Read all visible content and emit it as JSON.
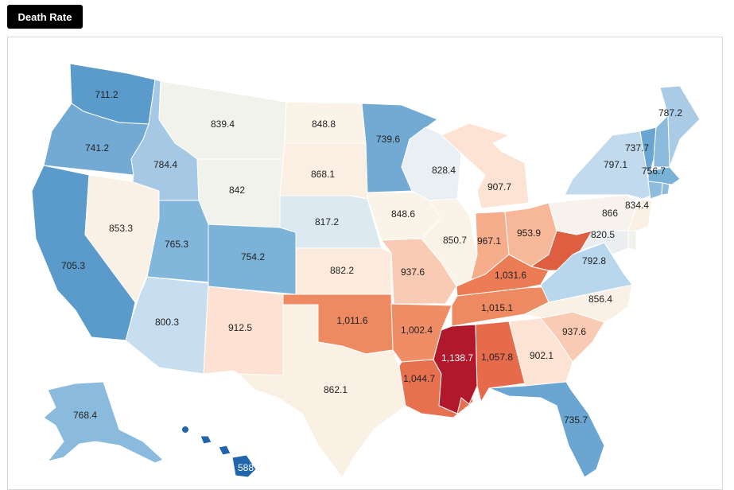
{
  "header": {
    "metric_button_label": "Death Rate"
  },
  "states": {
    "WA": {
      "label": "711.2",
      "color": "#5a9bcb"
    },
    "OR": {
      "label": "741.2",
      "color": "#72aad4"
    },
    "CA": {
      "label": "705.3",
      "color": "#5a9bcb"
    },
    "ID": {
      "label": "784.4",
      "color": "#a5c9e4"
    },
    "NV": {
      "label": "853.3",
      "color": "#f9f1e6"
    },
    "MT": {
      "label": "839.4",
      "color": "#f2f2ec"
    },
    "WY": {
      "label": "842",
      "color": "#f2f2ec"
    },
    "UT": {
      "label": "765.3",
      "color": "#82b6da"
    },
    "AZ": {
      "label": "800.3",
      "color": "#c6def0"
    },
    "CO": {
      "label": "754.2",
      "color": "#7bb2d8"
    },
    "NM": {
      "label": "912.5",
      "color": "#fde1d2"
    },
    "ND": {
      "label": "848.8",
      "color": "#faf3e8"
    },
    "SD": {
      "label": "868.1",
      "color": "#fbeee2"
    },
    "NE": {
      "label": "817.2",
      "color": "#dde9f0"
    },
    "KS": {
      "label": "882.2",
      "color": "#fcebdc"
    },
    "OK": {
      "label": "1,011.6",
      "color": "#ee8a62"
    },
    "TX": {
      "label": "862.1",
      "color": "#faf0e4"
    },
    "MN": {
      "label": "739.6",
      "color": "#72aad4"
    },
    "IA": {
      "label": "848.6",
      "color": "#faf3e8"
    },
    "MO": {
      "label": "937.6",
      "color": "#f9cbb4"
    },
    "AR": {
      "label": "1,002.4",
      "color": "#ef8e66"
    },
    "LA": {
      "label": "1,044.7",
      "color": "#e7704f"
    },
    "WI": {
      "label": "828.4",
      "color": "#e9eff2"
    },
    "IL": {
      "label": "850.7",
      "color": "#faf3e8"
    },
    "MI": {
      "label": "907.7",
      "color": "#fde3d4"
    },
    "IN": {
      "label": "967.1",
      "color": "#f6ad8c"
    },
    "OH": {
      "label": "953.9",
      "color": "#f7b89a"
    },
    "KY": {
      "label": "1,031.6",
      "color": "#ec7c56"
    },
    "TN": {
      "label": "1,015.1",
      "color": "#ee8a62"
    },
    "MS": {
      "label": "1,138.7",
      "color": "#b2182b"
    },
    "AL": {
      "label": "1,057.8",
      "color": "#e56b4b"
    },
    "GA": {
      "label": "902.1",
      "color": "#fde3d4"
    },
    "FL": {
      "label": "735.7",
      "color": "#6aa6d1"
    },
    "SC": {
      "label": "937.6",
      "color": "#f9cbb4"
    },
    "NC": {
      "label": "856.4",
      "color": "#faf1e6"
    },
    "VA": {
      "label": "792.8",
      "color": "#b8d6ec"
    },
    "WV": {
      "label": "",
      "color": "#dd5e41"
    },
    "PA": {
      "label": "834.4",
      "color": "#f7f2ec"
    },
    "NY": {
      "label": "797.1",
      "color": "#c1daee"
    },
    "VT": {
      "label": "737.7",
      "color": "#6ba6d2"
    },
    "NH": {
      "label": "",
      "color": "#8bbbdc"
    },
    "ME": {
      "label": "787.2",
      "color": "#a9cbe6"
    },
    "MA": {
      "label": "756.7",
      "color": "#79b1d7"
    },
    "CT": {
      "label": "",
      "color": "#8dbcdd"
    },
    "RI": {
      "label": "",
      "color": "#8dbcdd"
    },
    "NJ": {
      "label": "866",
      "color": "#faf0e4"
    },
    "DE": {
      "label": "",
      "color": "#f2f2ec"
    },
    "MD": {
      "label": "820.5",
      "color": "#ebeeef"
    },
    "AK": {
      "label": "768.4",
      "color": "#8bbbdc"
    },
    "HI": {
      "label": "588",
      "color": "#2166ac"
    }
  }
}
